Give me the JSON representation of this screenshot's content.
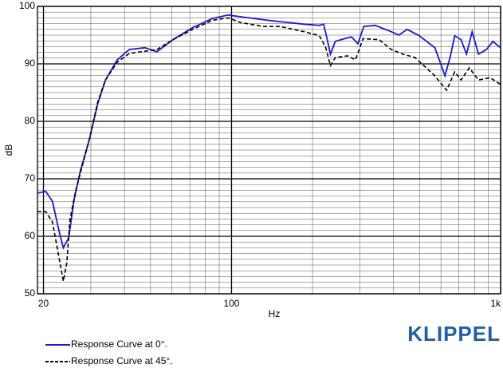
{
  "chart_data": {
    "type": "line",
    "logo": "KLIPPEL",
    "xlabel": "Hz",
    "ylabel": "dB",
    "xscale": "log",
    "grid": true,
    "xlim": [
      19,
      1000
    ],
    "ylim": [
      50,
      100
    ],
    "xticks": [
      20,
      100,
      {
        "value": 1000,
        "label": "1k"
      }
    ],
    "minor_xticks": [
      30,
      40,
      50,
      60,
      70,
      80,
      90,
      200,
      300,
      400,
      500,
      600,
      700,
      800,
      900
    ],
    "yticks": [
      50,
      60,
      70,
      80,
      90,
      100
    ],
    "minor_yticks": [
      51,
      52,
      53,
      54,
      55,
      56,
      57,
      58,
      59,
      61,
      62,
      63,
      64,
      65,
      66,
      67,
      68,
      69,
      71,
      72,
      73,
      74,
      75,
      76,
      77,
      78,
      79,
      81,
      82,
      83,
      84,
      85,
      86,
      87,
      88,
      89,
      91,
      92,
      93,
      94,
      95,
      96,
      97,
      98,
      99
    ],
    "series": [
      {
        "name": "Response Curve at 0°.",
        "color": "#1a1ad2",
        "dash": "solid",
        "x": [
          19,
          20.4,
          21.6,
          22.7,
          23.7,
          24.8,
          26,
          27.4,
          29.6,
          31.8,
          34,
          37.6,
          41.7,
          47.7,
          52.8,
          60.5,
          71.7,
          85,
          97.3,
          108,
          141,
          186,
          212,
          220,
          227,
          233,
          243,
          264,
          279,
          295,
          310,
          342,
          392,
          419,
          449,
          498,
          570,
          621,
          651,
          675,
          713,
          747,
          784,
          827,
          886,
          936,
          1000
        ],
        "values": [
          67.5,
          67.8,
          66.1,
          61.5,
          58,
          59.7,
          66.4,
          71.3,
          76.8,
          83,
          87.2,
          90.7,
          92.5,
          92.8,
          92.1,
          94.2,
          96.3,
          97.9,
          98.5,
          98.2,
          97.5,
          96.9,
          96.7,
          96.9,
          94.2,
          91.7,
          93.9,
          94.4,
          94.7,
          93.5,
          96.5,
          96.7,
          95.6,
          95,
          96,
          94.9,
          92.8,
          87.9,
          91.4,
          94.9,
          94.2,
          91.7,
          95.6,
          91.7,
          92.5,
          93.9,
          92.8
        ]
      },
      {
        "name": "Response Curve at 45°.",
        "color": "#000000",
        "dash": "dashed",
        "x": [
          19,
          20.4,
          21.6,
          22.7,
          23.7,
          24.4,
          25.1,
          26.3,
          29.6,
          31.8,
          34,
          37.6,
          41.7,
          47.7,
          52.8,
          60.5,
          71.7,
          85,
          97.3,
          108,
          132,
          152,
          186,
          212,
          224,
          233,
          243,
          270,
          289,
          308,
          354,
          392,
          433,
          481,
          570,
          630,
          675,
          713,
          765,
          827,
          915,
          1000
        ],
        "values": [
          64.3,
          64.3,
          62.5,
          57,
          52.2,
          55.3,
          62.9,
          67.8,
          76.8,
          83.3,
          87.2,
          90.3,
          91.8,
          92.2,
          92.5,
          94.2,
          96,
          97.6,
          98,
          97.2,
          96.5,
          96.5,
          95.6,
          94.9,
          92.8,
          89.7,
          91.1,
          91.4,
          90.7,
          94.4,
          94.2,
          92.5,
          91.7,
          91.1,
          87.9,
          85.4,
          88.6,
          87.2,
          89.3,
          87.2,
          87.6,
          86.4
        ]
      }
    ]
  }
}
